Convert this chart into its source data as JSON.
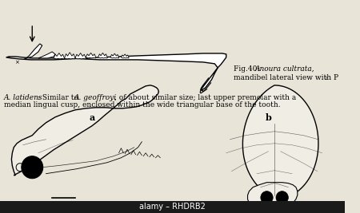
{
  "background_color": "#e8e4d8",
  "fig_width": 4.5,
  "fig_height": 2.67,
  "dpi": 100,
  "caption_fig40_line1": "Fig.40: ",
  "caption_fig40_italic": "Anoura cultrata,",
  "caption_fig40_line2": "mandibel lateral view with P",
  "caption_fig40_subscript": "2",
  "body_text_italic1": "A. latidens",
  "body_text_part1": ": Similar to ",
  "body_text_italic2": "A. geoffroyi",
  "body_text_part2": ", of about similar size; last upper premolar with a",
  "body_text_line2": "median lingual cusp, enclosed within the wide triangular base of the tooth.",
  "label_a": "a",
  "label_b": "b",
  "watermark_text": "alamy – RHDRB2",
  "watermark_bg": "#1a1a1a",
  "watermark_fg": "#ffffff"
}
